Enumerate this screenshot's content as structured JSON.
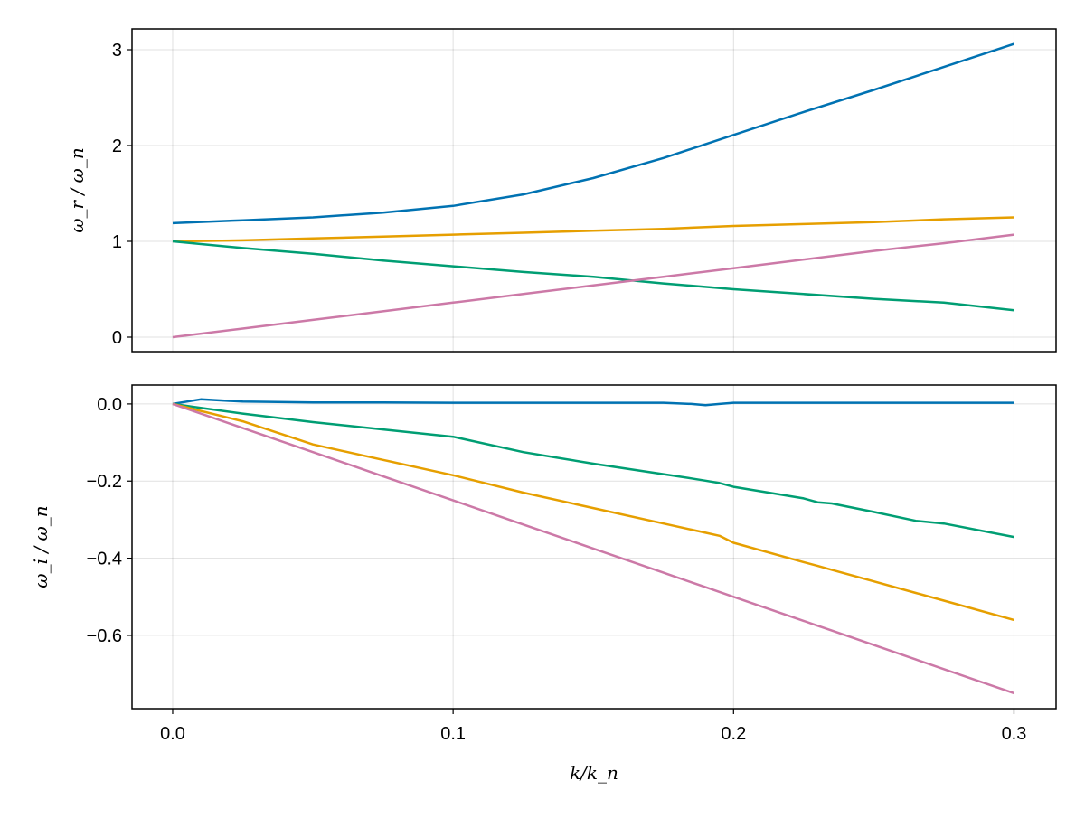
{
  "chart_data": [
    {
      "type": "line",
      "ylabel": "ω_r / ω_n",
      "xlim": [
        -0.0145,
        0.315
      ],
      "ylim": [
        -0.151,
        3.217
      ],
      "yticks": [
        0,
        1,
        2,
        3
      ],
      "ytick_labels": [
        "0",
        "1",
        "2",
        "3"
      ],
      "xticks": [
        0.0,
        0.1,
        0.2,
        0.3
      ],
      "grid": true,
      "x": [
        0,
        0.025,
        0.05,
        0.075,
        0.1,
        0.125,
        0.15,
        0.175,
        0.2,
        0.225,
        0.25,
        0.275,
        0.3
      ],
      "series": [
        {
          "color": "#0072b2",
          "values": [
            1.19,
            1.22,
            1.25,
            1.3,
            1.37,
            1.49,
            1.66,
            1.87,
            2.11,
            2.35,
            2.58,
            2.82,
            3.06
          ]
        },
        {
          "color": "#e69f00",
          "values": [
            1.0,
            1.01,
            1.03,
            1.05,
            1.07,
            1.09,
            1.11,
            1.13,
            1.16,
            1.18,
            1.2,
            1.23,
            1.25
          ]
        },
        {
          "color": "#009e73",
          "values": [
            1.0,
            0.93,
            0.87,
            0.8,
            0.74,
            0.68,
            0.63,
            0.56,
            0.5,
            0.45,
            0.4,
            0.36,
            0.28
          ]
        },
        {
          "color": "#cc79a7",
          "values": [
            0.0,
            0.09,
            0.18,
            0.27,
            0.36,
            0.45,
            0.54,
            0.63,
            0.72,
            0.81,
            0.9,
            0.98,
            1.07
          ]
        }
      ]
    },
    {
      "type": "line",
      "ylabel": "ω_i / ω_n",
      "xlabel": "k/k_n",
      "xlim": [
        -0.0145,
        0.315
      ],
      "ylim": [
        -0.79,
        0.049
      ],
      "yticks": [
        0.0,
        -0.2,
        -0.4,
        -0.6
      ],
      "ytick_labels": [
        "0.0",
        "−0.2",
        "−0.4",
        "−0.6"
      ],
      "xticks": [
        0.0,
        0.1,
        0.2,
        0.3
      ],
      "xtick_labels": [
        "0.0",
        "0.1",
        "0.2",
        "0.3"
      ],
      "grid": true,
      "x": [
        0,
        0.01,
        0.025,
        0.05,
        0.075,
        0.1,
        0.125,
        0.15,
        0.175,
        0.185,
        0.19,
        0.195,
        0.2,
        0.225,
        0.23,
        0.235,
        0.25,
        0.265,
        0.275,
        0.3
      ],
      "series": [
        {
          "color": "#0072b2",
          "values": [
            0,
            0.012,
            0.006,
            0.004,
            0.004,
            0.003,
            0.003,
            0.003,
            0.003,
            0.0,
            -0.003,
            0.0,
            0.003,
            0.003,
            0.003,
            0.003,
            0.003,
            0.003,
            0.003,
            0.003
          ]
        },
        {
          "color": "#009e73",
          "values": [
            0,
            -0.01,
            -0.025,
            -0.047,
            -0.066,
            -0.085,
            -0.125,
            -0.155,
            -0.182,
            -0.193,
            -0.199,
            -0.205,
            -0.215,
            -0.245,
            -0.255,
            -0.258,
            -0.28,
            -0.303,
            -0.31,
            -0.345
          ]
        },
        {
          "color": "#e69f00",
          "values": [
            0,
            -0.018,
            -0.045,
            -0.105,
            -0.145,
            -0.185,
            -0.23,
            -0.27,
            -0.31,
            -0.326,
            -0.334,
            -0.342,
            -0.36,
            -0.41,
            -0.42,
            -0.43,
            -0.46,
            -0.49,
            -0.51,
            -0.56
          ]
        },
        {
          "color": "#cc79a7",
          "values": [
            0,
            -0.025,
            -0.0625,
            -0.125,
            -0.1875,
            -0.25,
            -0.3125,
            -0.375,
            -0.4375,
            -0.4625,
            -0.475,
            -0.4875,
            -0.5,
            -0.5625,
            -0.575,
            -0.5875,
            -0.625,
            -0.6625,
            -0.6875,
            -0.75
          ]
        }
      ]
    }
  ]
}
